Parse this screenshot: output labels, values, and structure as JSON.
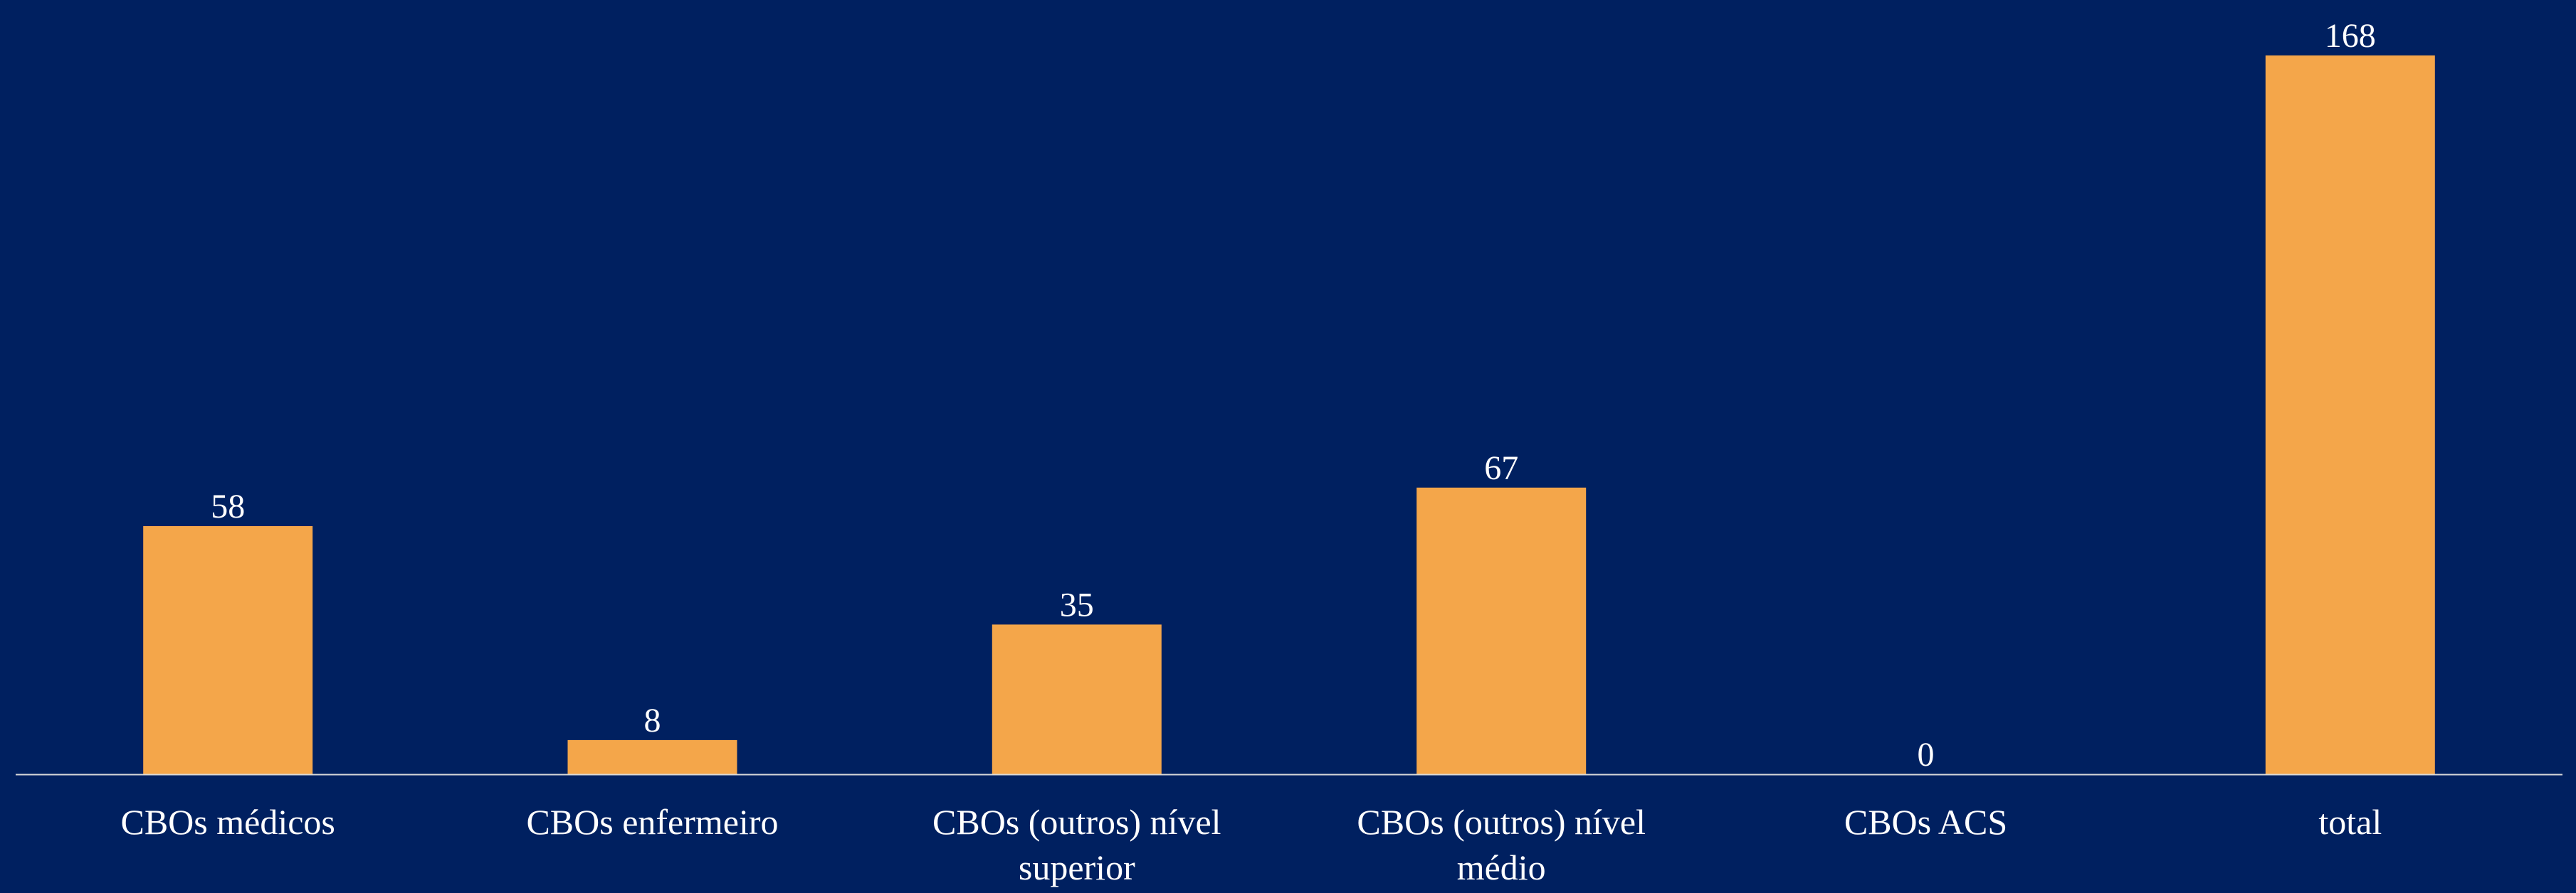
{
  "colors": {
    "background": "#002060",
    "bar": "#F4A64A",
    "axis": "#D9D9D9",
    "text": "#FFFFFF"
  },
  "chart_data": {
    "type": "bar",
    "title": "",
    "xlabel": "",
    "ylabel": "",
    "ylim": [
      0,
      168
    ],
    "grid": false,
    "legend": "none",
    "categories": [
      "CBOs médicos",
      "CBOs enfermeiro",
      "CBOs (outros) nível superior",
      "CBOs (outros) nível médio",
      "CBOs ACS",
      "total"
    ],
    "values": [
      58,
      8,
      35,
      67,
      0,
      168
    ],
    "data_labels": [
      "58",
      "8",
      "35",
      "67",
      "0",
      "168"
    ]
  }
}
